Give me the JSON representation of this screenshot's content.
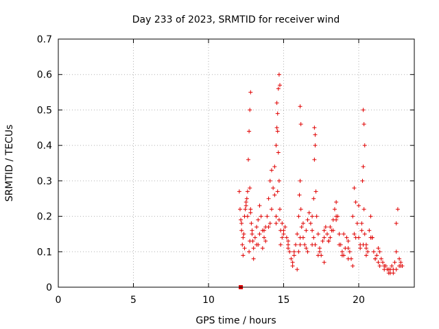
{
  "chart_data": {
    "type": "scatter",
    "title": "Day 233 of 2023, SRMTID for receiver wind",
    "xlabel": "GPS time / hours",
    "ylabel": "SRMTID / TECUs",
    "xlim": [
      0,
      23.7
    ],
    "ylim": [
      0,
      0.7
    ],
    "x_ticks": [
      0,
      5,
      10,
      15,
      20
    ],
    "x_tick_labels": [
      "0",
      "5",
      "10",
      "15",
      "20"
    ],
    "y_ticks": [
      0,
      0.1,
      0.2,
      0.3,
      0.4,
      0.5,
      0.6,
      0.7
    ],
    "y_tick_labels": [
      "0",
      "0.1",
      "0.2",
      "0.3",
      "0.4",
      "0.5",
      "0.6",
      "0.7"
    ],
    "grid": true,
    "colors": {
      "series": "#e00000",
      "axis": "#000000",
      "grid": "#b0b0b0"
    },
    "series": [
      {
        "name": "SRMTID",
        "marker": "plus",
        "x": [
          12.05,
          12.1,
          12.15,
          12.2,
          12.25,
          12.3,
          12.35,
          12.4,
          12.45,
          12.5,
          12.55,
          12.6,
          12.65,
          12.7,
          12.75,
          12.8,
          12.85,
          12.9,
          12.95,
          13.0,
          13.1,
          13.2,
          13.3,
          13.4,
          13.5,
          13.6,
          13.7,
          13.8,
          13.9,
          14.0,
          14.1,
          14.2,
          14.3,
          14.4,
          14.5,
          14.55,
          14.6,
          14.65,
          14.7,
          14.75,
          14.8,
          14.9,
          15.0,
          15.1,
          15.2,
          15.3,
          15.4,
          15.5,
          15.6,
          15.7,
          15.8,
          15.9,
          16.0,
          16.05,
          16.1,
          16.15,
          16.2,
          16.3,
          16.4,
          16.5,
          16.6,
          16.7,
          16.8,
          16.9,
          17.0,
          17.05,
          17.1,
          17.15,
          17.2,
          17.3,
          17.4,
          17.5,
          17.6,
          17.7,
          17.8,
          17.9,
          18.0,
          18.1,
          18.2,
          18.3,
          18.4,
          18.5,
          18.6,
          18.7,
          18.8,
          18.9,
          19.0,
          19.1,
          19.2,
          19.3,
          19.4,
          19.5,
          19.6,
          19.7,
          19.8,
          19.9,
          20.0,
          20.1,
          20.2,
          20.25,
          20.3,
          20.35,
          20.4,
          20.5,
          20.6,
          20.7,
          20.8,
          20.9,
          21.0,
          21.1,
          21.2,
          21.3,
          21.4,
          21.5,
          21.6,
          21.7,
          21.8,
          21.9,
          22.0,
          22.1,
          22.2,
          22.3,
          22.4,
          22.5,
          22.6,
          22.7,
          22.8,
          22.9,
          12.2,
          12.3,
          12.4,
          12.6,
          12.7,
          12.75,
          12.8,
          13.0,
          13.2,
          13.4,
          13.6,
          13.8,
          14.0,
          14.2,
          14.4,
          14.5,
          14.6,
          14.7,
          14.8,
          15.0,
          15.3,
          15.6,
          15.9,
          16.0,
          16.1,
          16.3,
          16.6,
          16.9,
          17.0,
          17.1,
          17.4,
          17.7,
          18.0,
          18.3,
          18.5,
          18.7,
          19.0,
          19.3,
          19.6,
          19.8,
          20.0,
          20.2,
          20.3,
          20.5,
          20.8,
          21.1,
          21.4,
          21.7,
          22.0,
          22.3,
          22.5,
          22.7,
          12.5,
          12.9,
          13.3,
          13.7,
          14.1,
          14.5,
          14.9,
          15.3,
          15.7,
          16.1,
          16.5,
          16.9,
          17.3,
          17.7,
          18.1,
          18.5,
          18.9,
          19.3,
          19.7,
          20.1,
          20.5,
          20.9,
          21.3,
          21.7,
          22.1,
          22.5,
          22.8,
          12.75,
          12.8,
          14.55,
          14.6,
          14.65,
          14.7,
          14.75,
          16.1,
          16.15,
          17.05,
          17.1,
          20.3,
          20.35,
          20.4,
          12.15
        ],
        "y": [
          0.27,
          0.22,
          0.19,
          0.16,
          0.12,
          0.09,
          0.15,
          0.2,
          0.22,
          0.24,
          0.25,
          0.27,
          0.36,
          0.44,
          0.28,
          0.22,
          0.18,
          0.16,
          0.13,
          0.11,
          0.14,
          0.17,
          0.19,
          0.23,
          0.2,
          0.16,
          0.14,
          0.17,
          0.2,
          0.25,
          0.3,
          0.33,
          0.28,
          0.34,
          0.4,
          0.45,
          0.44,
          0.38,
          0.3,
          0.22,
          0.16,
          0.14,
          0.15,
          0.17,
          0.14,
          0.12,
          0.1,
          0.08,
          0.06,
          0.09,
          0.12,
          0.15,
          0.2,
          0.26,
          0.3,
          0.22,
          0.17,
          0.14,
          0.12,
          0.16,
          0.19,
          0.21,
          0.18,
          0.2,
          0.25,
          0.36,
          0.4,
          0.27,
          0.2,
          0.15,
          0.11,
          0.09,
          0.13,
          0.16,
          0.17,
          0.15,
          0.13,
          0.14,
          0.16,
          0.19,
          0.22,
          0.24,
          0.2,
          0.15,
          0.12,
          0.1,
          0.09,
          0.11,
          0.14,
          0.13,
          0.1,
          0.08,
          0.2,
          0.28,
          0.24,
          0.18,
          0.14,
          0.12,
          0.16,
          0.3,
          0.34,
          0.22,
          0.15,
          0.12,
          0.1,
          0.16,
          0.2,
          0.14,
          0.1,
          0.08,
          0.09,
          0.11,
          0.1,
          0.08,
          0.07,
          0.06,
          0.06,
          0.05,
          0.05,
          0.04,
          0.06,
          0.05,
          0.07,
          0.18,
          0.22,
          0.08,
          0.07,
          0.06,
          0.18,
          0.14,
          0.11,
          0.2,
          0.1,
          0.13,
          0.21,
          0.08,
          0.12,
          0.15,
          0.11,
          0.13,
          0.17,
          0.22,
          0.26,
          0.18,
          0.27,
          0.19,
          0.12,
          0.16,
          0.11,
          0.07,
          0.05,
          0.1,
          0.12,
          0.18,
          0.1,
          0.12,
          0.14,
          0.12,
          0.1,
          0.07,
          0.13,
          0.16,
          0.2,
          0.12,
          0.15,
          0.08,
          0.06,
          0.14,
          0.23,
          0.18,
          0.12,
          0.11,
          0.14,
          0.08,
          0.06,
          0.05,
          0.04,
          0.04,
          0.1,
          0.06,
          0.23,
          0.15,
          0.12,
          0.16,
          0.18,
          0.2,
          0.18,
          0.13,
          0.1,
          0.14,
          0.11,
          0.16,
          0.09,
          0.14,
          0.17,
          0.19,
          0.09,
          0.11,
          0.15,
          0.11,
          0.09,
          0.14,
          0.07,
          0.06,
          0.05,
          0.05,
          0.06,
          0.5,
          0.55,
          0.52,
          0.49,
          0.56,
          0.6,
          0.57,
          0.51,
          0.46,
          0.45,
          0.43,
          0.5,
          0.46,
          0.4,
          0.0
        ]
      }
    ]
  }
}
